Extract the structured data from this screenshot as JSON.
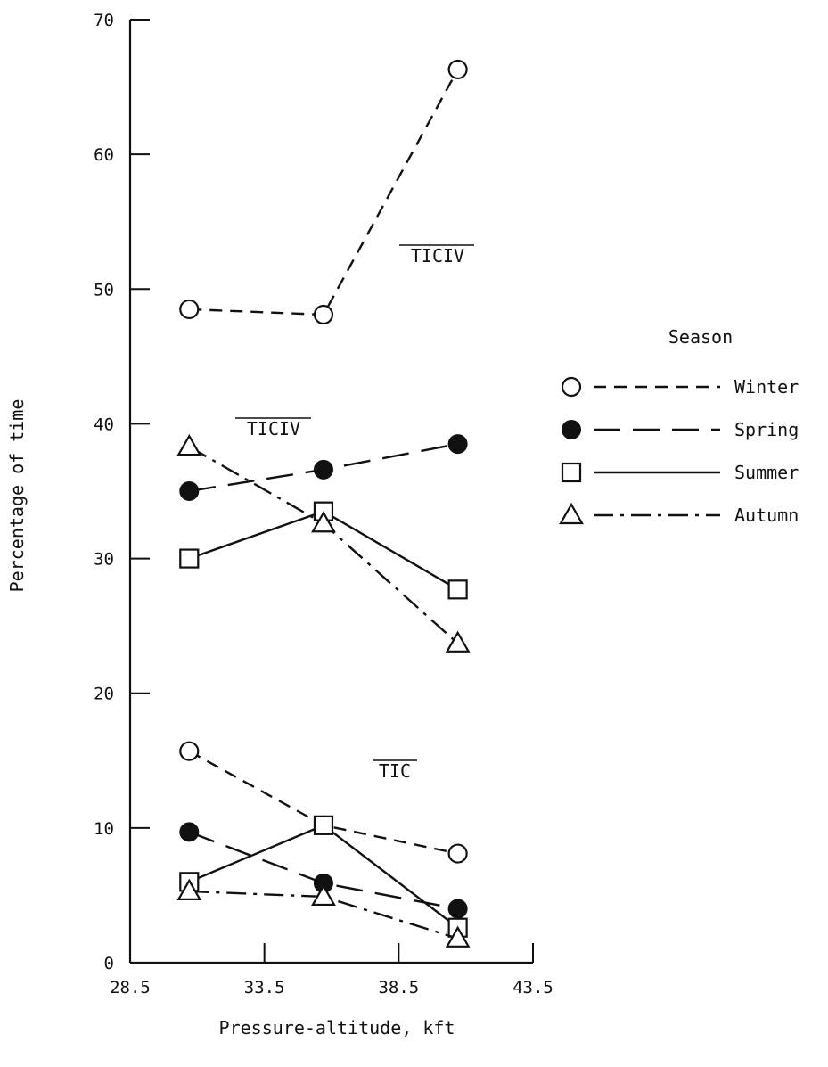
{
  "chart_data": {
    "type": "line",
    "xlabel": "Pressure-altitude, kft",
    "ylabel": "Percentage of time",
    "xlim": [
      28.5,
      43.5
    ],
    "ylim": [
      0,
      70
    ],
    "xticks": [
      "28.5",
      "33.5",
      "38.5",
      "43.5"
    ],
    "yticks": [
      "0",
      "10",
      "20",
      "30",
      "40",
      "50",
      "60",
      "70"
    ],
    "x": [
      30.5,
      35.5,
      40.5
    ],
    "legend": {
      "title": "Season",
      "placement": "right",
      "entries": [
        "Winter",
        "Spring",
        "Summer",
        "Autumn"
      ]
    },
    "group_labels": [
      "TICIV",
      "TICIV",
      "TIC"
    ],
    "groups": [
      {
        "series": [
          {
            "name": "Winter",
            "marker": "circle-open",
            "style": "dashed",
            "x": [
              30.7,
              35.7,
              40.7
            ],
            "values": [
              48.5,
              48.1,
              66.3
            ]
          }
        ]
      },
      {
        "series": [
          {
            "name": "Spring",
            "marker": "circle-filled",
            "style": "long-dash",
            "x": [
              30.7,
              35.7,
              40.7
            ],
            "values": [
              35.0,
              36.6,
              38.5
            ]
          },
          {
            "name": "Summer",
            "marker": "square",
            "style": "solid",
            "x": [
              30.7,
              35.7,
              40.7
            ],
            "values": [
              30.0,
              33.5,
              27.7
            ]
          },
          {
            "name": "Autumn",
            "marker": "triangle",
            "style": "dash-dot",
            "x": [
              30.7,
              35.7,
              40.7
            ],
            "values": [
              38.3,
              32.6,
              23.7
            ]
          }
        ]
      },
      {
        "series": [
          {
            "name": "Winter",
            "marker": "circle-open",
            "style": "dashed",
            "x": [
              30.7,
              35.7,
              40.7
            ],
            "values": [
              15.7,
              10.2,
              8.1
            ]
          },
          {
            "name": "Spring",
            "marker": "circle-filled",
            "style": "long-dash",
            "x": [
              30.7,
              35.7,
              40.7
            ],
            "values": [
              9.7,
              5.9,
              4.0
            ]
          },
          {
            "name": "Summer",
            "marker": "square",
            "style": "solid",
            "x": [
              30.7,
              35.7,
              40.7
            ],
            "values": [
              6.0,
              10.2,
              2.6
            ]
          },
          {
            "name": "Autumn",
            "marker": "triangle",
            "style": "dash-dot",
            "x": [
              30.7,
              35.7,
              40.7
            ],
            "values": [
              5.3,
              4.9,
              1.8
            ]
          }
        ]
      }
    ],
    "grid": false
  }
}
